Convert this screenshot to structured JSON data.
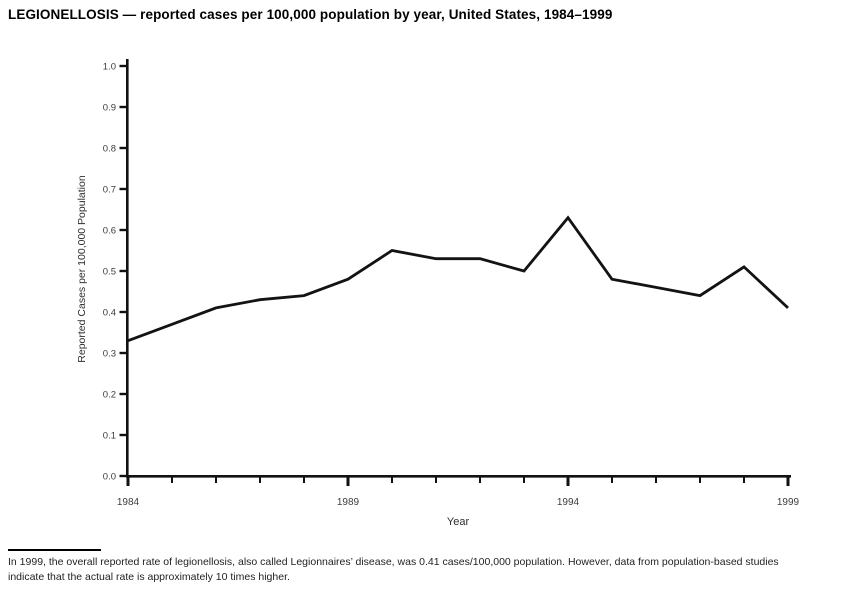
{
  "chart_data": {
    "type": "line",
    "title": "LEGIONELLOSIS — reported cases per 100,000 population by year, United States, 1984–1999",
    "xlabel": "Year",
    "ylabel": "Reported Cases per 100,000 Population",
    "x": [
      1984,
      1985,
      1986,
      1987,
      1988,
      1989,
      1990,
      1991,
      1992,
      1993,
      1994,
      1995,
      1996,
      1997,
      1998,
      1999
    ],
    "values": [
      0.33,
      0.37,
      0.41,
      0.43,
      0.44,
      0.48,
      0.55,
      0.53,
      0.53,
      0.5,
      0.63,
      0.48,
      0.46,
      0.44,
      0.51,
      0.41
    ],
    "ylim": [
      0.0,
      1.0
    ],
    "y_tick_step": 0.1,
    "y_tick_labels": [
      "0.0",
      "0.1",
      "0.2",
      "0.3",
      "0.4",
      "0.5",
      "0.6",
      "0.7",
      "0.8",
      "0.9",
      "1.0"
    ],
    "x_tick_labels": [
      "1984",
      "1989",
      "1994",
      "1999"
    ],
    "grid": false,
    "legend_position": "none",
    "line_color": "#131313",
    "axis_color": "#111111",
    "tick_label_color": "#3c3c3c"
  },
  "footnote": {
    "line1": "In 1999, the overall reported rate of legionellosis, also called Legionnaires’ disease, was 0.41 cases/100,000 population. However, data from population-based studies",
    "line2": "indicate that the actual rate is approximately 10 times higher."
  }
}
